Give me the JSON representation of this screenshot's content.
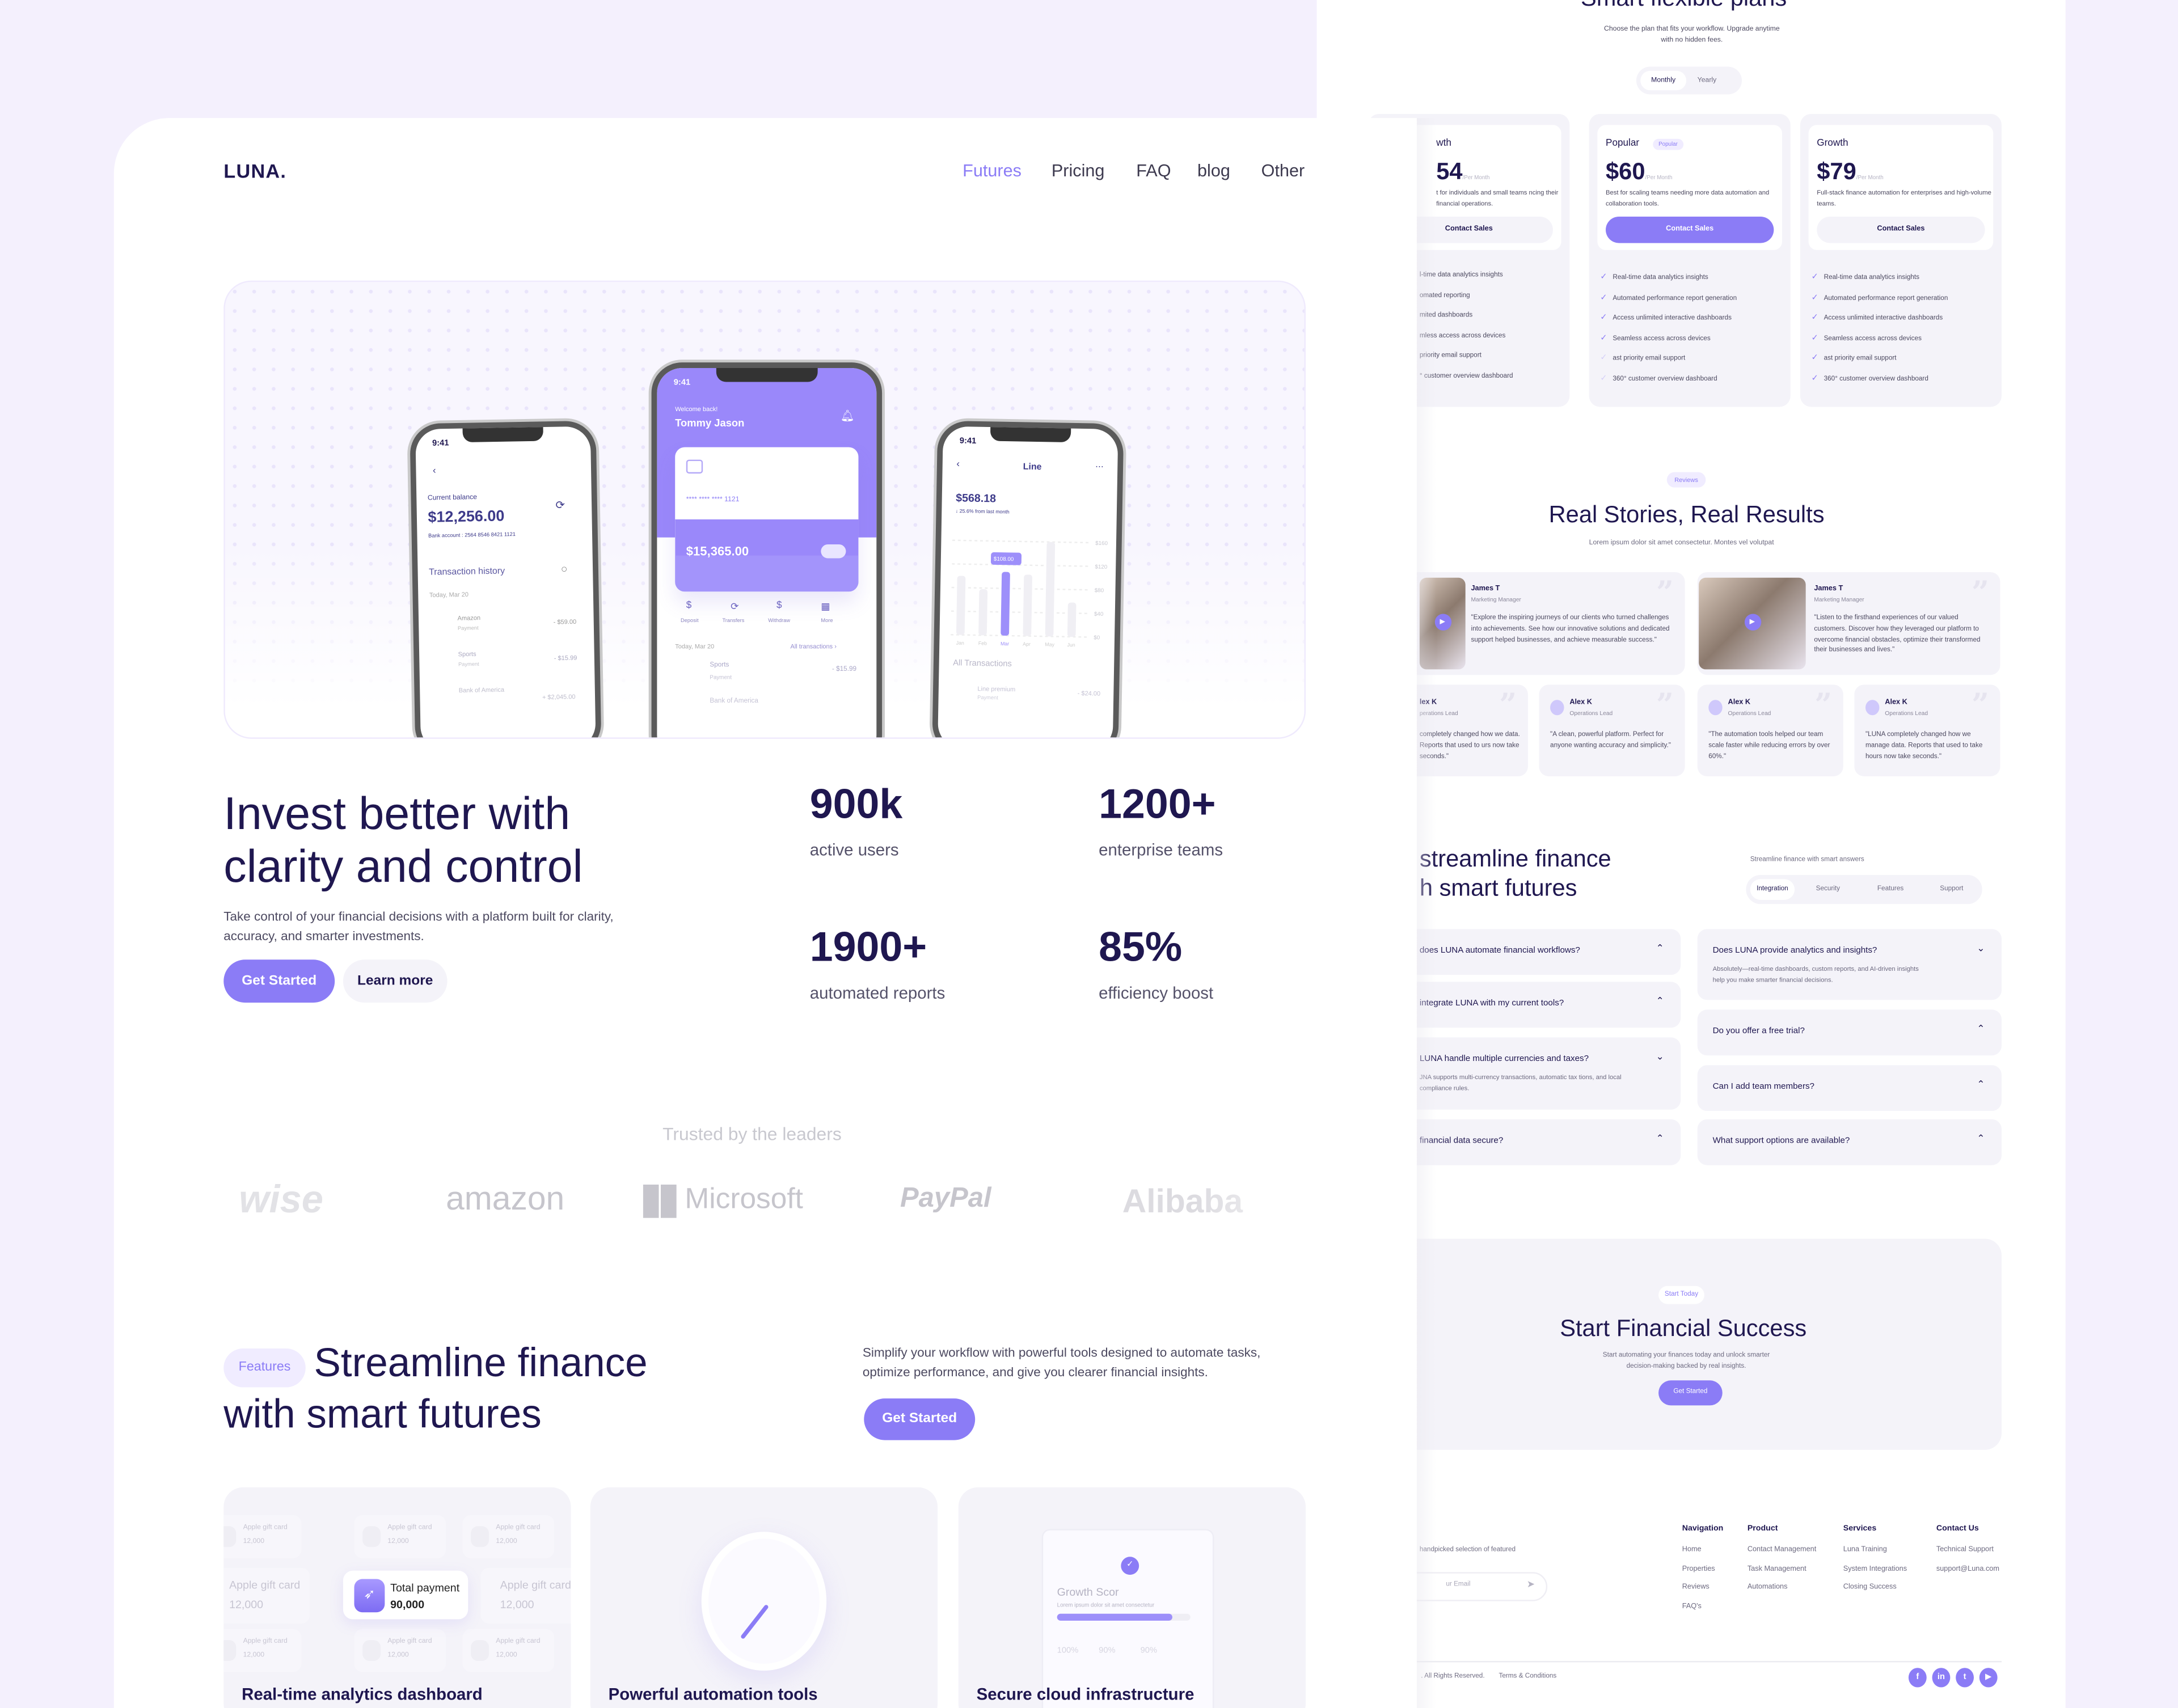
{
  "colors": {
    "accent": "#8b7cf6",
    "navy": "#1f1750",
    "background": "#f4f0fd",
    "card": "#f4f3f9"
  },
  "nav": {
    "logo": "LUNA.",
    "items": [
      {
        "label": "Futures",
        "active": true
      },
      {
        "label": "Pricing"
      },
      {
        "label": "FAQ"
      },
      {
        "label": "blog"
      },
      {
        "label": "Other"
      }
    ]
  },
  "phones": {
    "left": {
      "time": "9:41",
      "balance_label": "Current balance",
      "balance": "$12,256.00",
      "bank_account": "Bank account : 2564  8546  8421  1121",
      "history_title": "Transaction history",
      "date": "Today, Mar 20",
      "transactions": [
        {
          "name": "Amazon",
          "type": "Payment",
          "amount": "- $59.00"
        },
        {
          "name": "Sports",
          "type": "Payment",
          "amount": "- $15.99"
        },
        {
          "name": "Bank of America",
          "amount": "+ $2,045.00"
        }
      ]
    },
    "center": {
      "time": "9:41",
      "greeting": "Welcome back!",
      "name": "Tommy Jason",
      "card_number": "****  ****  ****  1121",
      "card_balance": "$15,365.00",
      "actions": [
        "Deposit",
        "Transfers",
        "Withdraw",
        "More"
      ],
      "date": "Today, Mar 20",
      "all_link": "All transactions  ›",
      "transactions": [
        {
          "name": "Sports",
          "type": "Payment",
          "amount": "- $15.99"
        },
        {
          "name": "Bank of America"
        }
      ]
    },
    "right": {
      "time": "9:41",
      "title": "Line",
      "amount": "$568.18",
      "change": "↓ 25.6%  from last month",
      "tooltip": "$108.00",
      "y_ticks": [
        "$160",
        "$120",
        "$80",
        "$40",
        "$0"
      ],
      "months": [
        "Jan",
        "Feb",
        "Mar",
        "Apr",
        "May",
        "Jun"
      ],
      "bar_values": [
        100,
        78,
        108,
        104,
        160,
        58
      ],
      "highlight_month": "Mar",
      "ymax": 160,
      "all_title": "All Transactions",
      "row": {
        "name": "Line premium",
        "type": "Payment",
        "amount": "- $24.00"
      }
    }
  },
  "hero": {
    "title_line1": "Invest better with",
    "title_line2": "clarity and control",
    "description": "Take control of your financial decisions with a platform built for clarity, accuracy, and smarter investments.",
    "primary_cta": "Get Started",
    "secondary_cta": "Learn more",
    "stats": [
      {
        "value": "900k",
        "label": "active users"
      },
      {
        "value": "1200+",
        "label": "enterprise teams"
      },
      {
        "value": "1900+",
        "label": "automated reports"
      },
      {
        "value": "85%",
        "label": "efficiency boost"
      }
    ]
  },
  "trusted": {
    "title": "Trusted by the leaders",
    "logos": [
      "wise",
      "amazon",
      "Microsoft",
      "PayPal",
      "Alibaba"
    ]
  },
  "features": {
    "badge": "Features",
    "title_line1": "Streamline finance",
    "title_line2": "with smart futures",
    "description": "Simplify your workflow with powerful tools designed to automate tasks, optimize performance, and give you clearer financial insights.",
    "cta": "Get Started",
    "cards": [
      {
        "title": "Real-time analytics dashboard",
        "gift_label": "Apple gift card",
        "gift_value": "12,000",
        "total_label": "Total payment",
        "total_value": "90,000"
      },
      {
        "title": "Powerful automation tools"
      },
      {
        "title": "Secure cloud infrastructure",
        "score_title": "Growth Scor",
        "score_text": "Lorem ipsum dolor sit amet consectetur",
        "score_progress": 0.86,
        "percents": [
          "100%",
          "90%",
          "90%"
        ]
      }
    ]
  },
  "pricing": {
    "title": "Smart flexible plans",
    "subtitle": "Choose the plan that fits your workflow. Upgrade anytime with no hidden fees.",
    "toggle": [
      {
        "label": "Monthly",
        "active": true
      },
      {
        "label": "Yearly"
      }
    ],
    "per": "/Per Month",
    "plans": [
      {
        "name": "wth",
        "price": "54",
        "description": "t for individuals and small teams ncing their financial operations.",
        "cta": "Contact Sales",
        "features": [
          "l-time data analytics insights",
          "omated reporting",
          "mited dashboards",
          "mless access across devices",
          "priority email support",
          "° customer overview dashboard"
        ]
      },
      {
        "name": "Popular",
        "badge": "Popular",
        "price": "$60",
        "description": "Best for scaling teams needing more data automation and collaboration tools.",
        "cta": "Contact Sales",
        "features": [
          "Real-time data analytics insights",
          "Automated performance report generation",
          "Access unlimited interactive dashboards",
          "Seamless access across devices",
          "ast priority email support",
          "360° customer overview dashboard"
        ]
      },
      {
        "name": "Growth",
        "price": "$79",
        "description": "Full-stack finance automation for enterprises and high-volume teams.",
        "cta": "Contact Sales",
        "features": [
          "Real-time data analytics insights",
          "Automated performance report generation",
          "Access unlimited interactive dashboards",
          "Seamless access across devices",
          "ast priority email support",
          "360° customer overview dashboard"
        ]
      }
    ]
  },
  "reviews": {
    "badge": "Reviews",
    "title": "Real Stories, Real Results",
    "subtitle": "Lorem ipsum dolor sit amet consectetur. Montes vel volutpat",
    "featured": [
      {
        "name": "James T",
        "role": "Marketing Manager",
        "quote": "\"Explore the inspiring journeys of our clients who turned challenges into achievements. See how our innovative solutions and dedicated support helped businesses, and achieve measurable success.\""
      },
      {
        "name": "James T",
        "role": "Marketing Manager",
        "quote": "\"Listen to the firsthand experiences of our valued customers. Discover how they leveraged our platform to overcome financial obstacles, optimize their transformed their businesses and lives.\""
      }
    ],
    "small": [
      {
        "name": "lex K",
        "role": "perations Lead",
        "quote": "completely changed how we data. Reports that used to urs now take seconds.\""
      },
      {
        "name": "Alex K",
        "role": "Operations Lead",
        "quote": "\"A clean, powerful platform. Perfect for anyone wanting accuracy and simplicity.\""
      },
      {
        "name": "Alex K",
        "role": "Operations Lead",
        "quote": "\"The automation tools helped our team scale faster while reducing errors by over 60%.\""
      },
      {
        "name": "Alex K",
        "role": "Operations Lead",
        "quote": "\"LUNA completely changed how we manage data. Reports that used to take hours now take seconds.\""
      }
    ]
  },
  "faq": {
    "title_line1": "streamline finance",
    "title_line2": "h smart futures",
    "side_text": "Streamline finance with smart answers",
    "tabs": [
      {
        "label": "Integration",
        "active": true
      },
      {
        "label": "Security"
      },
      {
        "label": "Features"
      },
      {
        "label": "Support"
      }
    ],
    "left": [
      {
        "q": "does LUNA automate financial workflows?",
        "open": false
      },
      {
        "q": "integrate LUNA with my current tools?",
        "open": false
      },
      {
        "q": "LUNA handle multiple currencies and taxes?",
        "a": "JNA supports multi-currency transactions, automatic tax tions, and local compliance rules.",
        "open": true
      },
      {
        "q": "financial data secure?",
        "open": false
      }
    ],
    "right": [
      {
        "q": "Does LUNA provide analytics and insights?",
        "a": "Absolutely—real-time dashboards, custom reports, and AI-driven insights help you make smarter financial decisions.",
        "open": true
      },
      {
        "q": "Do you offer a free trial?",
        "open": false
      },
      {
        "q": "Can I add team members?",
        "open": false
      },
      {
        "q": "What support options are available?",
        "open": false
      }
    ]
  },
  "cta": {
    "badge": "Start Today",
    "title": "Start Financial Success",
    "description": "Start automating your finances today and unlock smarter decision-making backed by real insights.",
    "button": "Get Started"
  },
  "footer": {
    "tagline": "handpicked selection of featured",
    "email_placeholder": "ur Email",
    "columns": [
      {
        "title": "Navigation",
        "links": [
          "Home",
          "Properties",
          "Reviews",
          "FAQ's"
        ]
      },
      {
        "title": "Product",
        "links": [
          "Contact Management",
          "Task Management",
          "Automations"
        ]
      },
      {
        "title": "Services",
        "links": [
          "Luna Training",
          "System Integrations",
          "Closing Success"
        ]
      },
      {
        "title": "Contact Us",
        "links": [
          "Technical Support",
          "support@Luna.com"
        ]
      }
    ],
    "copyright": ". All Rights Reserved.",
    "terms": "Terms & Conditions",
    "social": [
      "facebook-icon",
      "linkedin-icon",
      "twitter-icon",
      "youtube-icon"
    ]
  }
}
